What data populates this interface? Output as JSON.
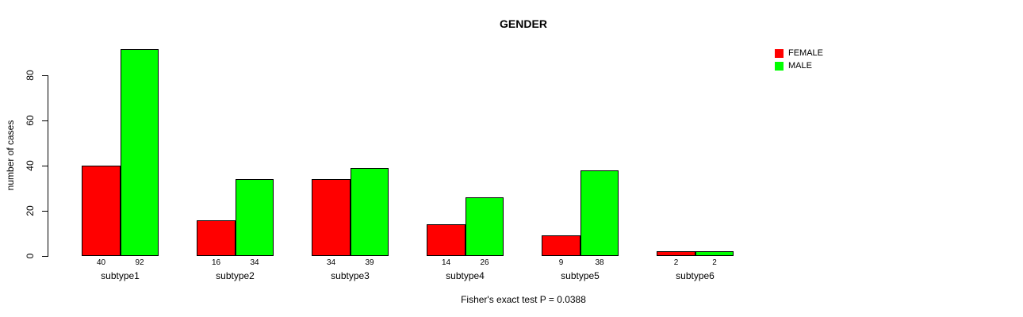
{
  "chart_data": {
    "type": "bar",
    "title": "GENDER",
    "ylabel": "number of cases",
    "xlabel": "",
    "categories": [
      "subtype1",
      "subtype2",
      "subtype3",
      "subtype4",
      "subtype5",
      "subtype6"
    ],
    "series": [
      {
        "name": "FEMALE",
        "color": "#FF0000",
        "values": [
          40,
          16,
          34,
          14,
          9,
          2
        ]
      },
      {
        "name": "MALE",
        "color": "#00FF00",
        "values": [
          92,
          34,
          39,
          26,
          38,
          2
        ]
      }
    ],
    "bar_value_labels": [
      [
        "40",
        "92"
      ],
      [
        "16",
        "34"
      ],
      [
        "34",
        "39"
      ],
      [
        "14",
        "26"
      ],
      [
        "9",
        "38"
      ],
      [
        "2",
        "2"
      ]
    ],
    "yticks": [
      0,
      20,
      40,
      60,
      80
    ],
    "ylim": [
      0,
      93
    ],
    "grid": false,
    "legend_position": "top-right",
    "caption": "Fisher's exact test P = 0.0388"
  },
  "colors": {
    "background": "#FFFFFF",
    "text": "#000000",
    "axis": "#000000",
    "bar_border": "#000000",
    "female": "#FF0000",
    "male": "#00FF00"
  }
}
